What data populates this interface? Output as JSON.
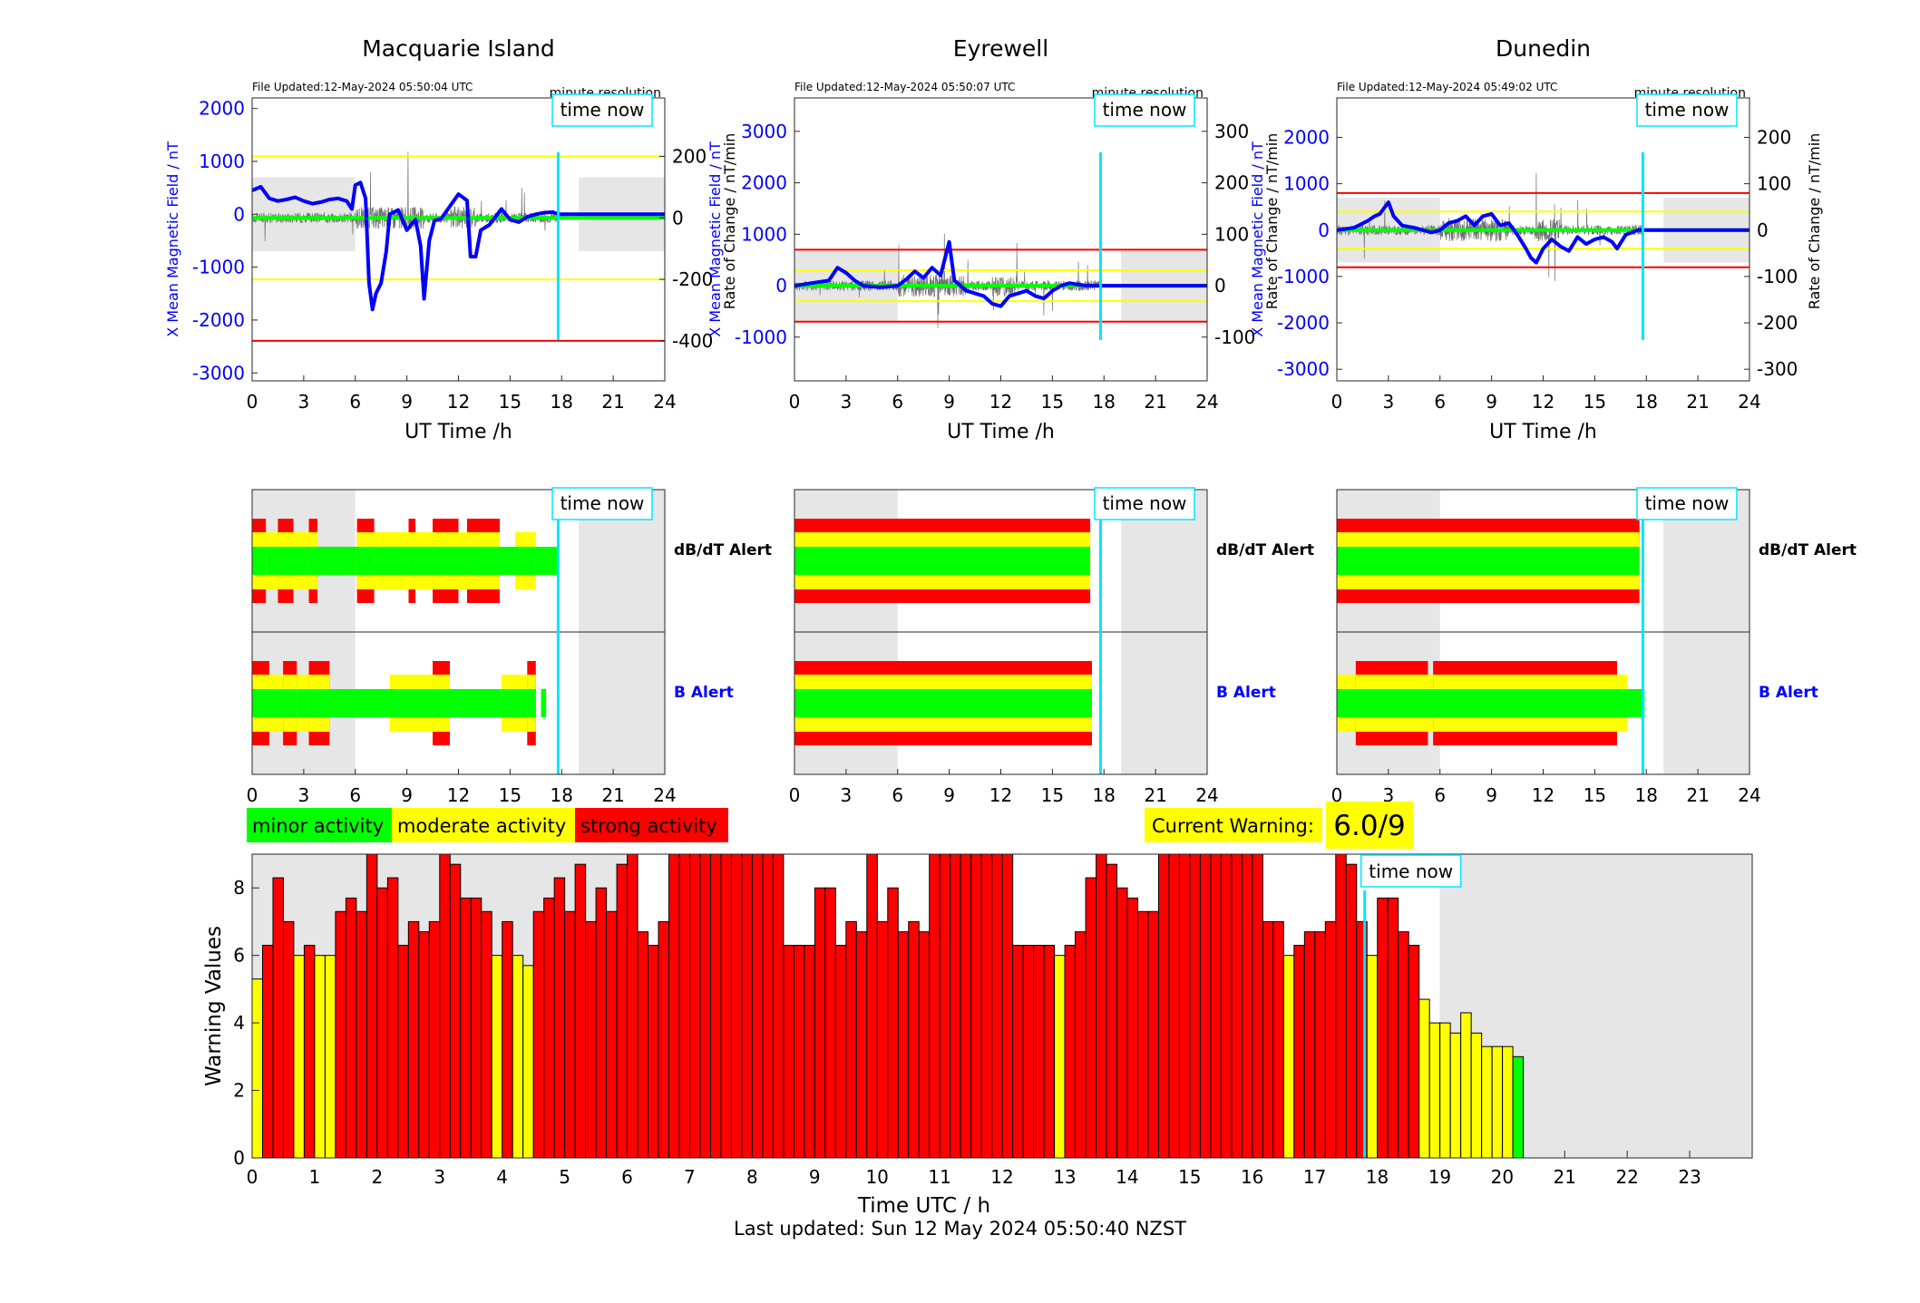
{
  "footer": {
    "last_updated": "Last updated: Sun 12 May 2024 05:50:40 NZST"
  },
  "colors": {
    "minor": "#00ff00",
    "moderate": "#ffff00",
    "strong": "#ff0000",
    "now": "#00e5ff",
    "night": "#e6e6e6",
    "field": "#0000ff"
  },
  "time_now_label": "time now",
  "legend": {
    "minor": "minor activity",
    "moderate": "moderate activity",
    "strong": "strong activity"
  },
  "current_warning": {
    "label": "Current Warning:",
    "value": "6.0/9"
  },
  "alert_labels": {
    "dbdt": "dB/dT Alert",
    "b": "B Alert"
  },
  "now_hour": 17.8,
  "stations": [
    {
      "name": "Macquarie Island",
      "file_updated": "File Updated:12-May-2024 05:50:04 UTC",
      "resolution": "minute resolution",
      "ylabel_left": "X Mean Magnetic Field / nT",
      "ylabel_right": "Rate of Change / nT/min",
      "yticks_left": [
        "2000",
        "1000",
        "0",
        "-1000",
        "-2000",
        "-3000"
      ],
      "yticks_right": [
        "200",
        "0",
        "-200",
        "-400"
      ],
      "ylim_left": [
        -3150,
        2200
      ],
      "ylim_right": [
        -530,
        390
      ],
      "night": [
        [
          0,
          6
        ],
        [
          19,
          24
        ]
      ],
      "band_lines": [
        400,
        -400,
        200,
        -200
      ],
      "field_series": [
        [
          0,
          450
        ],
        [
          0.5,
          520
        ],
        [
          1,
          300
        ],
        [
          1.5,
          250
        ],
        [
          2,
          280
        ],
        [
          2.5,
          320
        ],
        [
          3,
          250
        ],
        [
          3.5,
          200
        ],
        [
          4,
          230
        ],
        [
          4.5,
          280
        ],
        [
          5,
          300
        ],
        [
          5.5,
          250
        ],
        [
          5.8,
          100
        ],
        [
          6,
          550
        ],
        [
          6.3,
          600
        ],
        [
          6.6,
          300
        ],
        [
          6.8,
          -1300
        ],
        [
          7,
          -1800
        ],
        [
          7.2,
          -1500
        ],
        [
          7.5,
          -1300
        ],
        [
          7.8,
          -700
        ],
        [
          8,
          0
        ],
        [
          8.5,
          80
        ],
        [
          9,
          -300
        ],
        [
          9.5,
          -100
        ],
        [
          9.8,
          -600
        ],
        [
          10,
          -1600
        ],
        [
          10.3,
          -500
        ],
        [
          10.6,
          -120
        ],
        [
          11,
          -80
        ],
        [
          11.5,
          150
        ],
        [
          12,
          380
        ],
        [
          12.5,
          260
        ],
        [
          12.7,
          -800
        ],
        [
          13,
          -800
        ],
        [
          13.3,
          -300
        ],
        [
          13.8,
          -200
        ],
        [
          14.5,
          100
        ],
        [
          15,
          -100
        ],
        [
          15.5,
          -150
        ],
        [
          16,
          -50
        ],
        [
          16.5,
          0
        ],
        [
          17,
          30
        ],
        [
          17.5,
          40
        ],
        [
          17.8,
          0
        ],
        [
          24,
          0
        ]
      ],
      "dbdt_bands": [
        [
          0,
          0.8,
          "strong"
        ],
        [
          0.8,
          1.5,
          "moderate"
        ],
        [
          1.5,
          2.4,
          "strong"
        ],
        [
          2.4,
          3.3,
          "moderate"
        ],
        [
          3.3,
          3.8,
          "strong"
        ],
        [
          3.8,
          6.1,
          "minor"
        ],
        [
          6.1,
          7.1,
          "strong"
        ],
        [
          7.1,
          9.1,
          "moderate"
        ],
        [
          9.1,
          9.5,
          "strong"
        ],
        [
          9.5,
          10.5,
          "moderate"
        ],
        [
          10.5,
          12,
          "strong"
        ],
        [
          12,
          12.5,
          "moderate"
        ],
        [
          12.5,
          14.4,
          "strong"
        ],
        [
          14.4,
          15.3,
          "minor"
        ],
        [
          15.3,
          16.5,
          "moderate"
        ],
        [
          16.5,
          17.8,
          "minor"
        ]
      ],
      "b_bands": [
        [
          0,
          1,
          "strong"
        ],
        [
          1,
          1.8,
          "moderate"
        ],
        [
          1.8,
          2.6,
          "strong"
        ],
        [
          2.6,
          3.3,
          "moderate"
        ],
        [
          3.3,
          4.5,
          "strong"
        ],
        [
          4.5,
          8,
          "minor"
        ],
        [
          8,
          10.5,
          "moderate"
        ],
        [
          10.5,
          11.5,
          "strong"
        ],
        [
          11.5,
          14.5,
          "minor"
        ],
        [
          14.5,
          16,
          "moderate"
        ],
        [
          16,
          16.5,
          "strong"
        ],
        [
          16.8,
          17.1,
          "minor"
        ]
      ]
    },
    {
      "name": "Eyrewell",
      "file_updated": "File Updated:12-May-2024 05:50:07 UTC",
      "resolution": "minute resolution",
      "ylabel_left": "X Mean Magnetic Field / nT",
      "ylabel_right": "Rate of Change / nT/min",
      "yticks_left": [
        "3000",
        "2000",
        "1000",
        "0",
        "-1000"
      ],
      "yticks_right": [
        "300",
        "200",
        "100",
        "0",
        "-100"
      ],
      "ylim_left": [
        -1850,
        3650
      ],
      "ylim_right": [
        -185,
        365
      ],
      "night": [
        [
          0,
          6
        ],
        [
          19,
          24
        ]
      ],
      "band_lines": [
        70,
        -70,
        30,
        -30
      ],
      "field_series": [
        [
          0,
          0
        ],
        [
          1,
          50
        ],
        [
          2,
          100
        ],
        [
          2.5,
          350
        ],
        [
          3,
          250
        ],
        [
          3.5,
          100
        ],
        [
          4,
          0
        ],
        [
          5,
          -30
        ],
        [
          6,
          0
        ],
        [
          6.5,
          120
        ],
        [
          7,
          280
        ],
        [
          7.5,
          150
        ],
        [
          8,
          350
        ],
        [
          8.5,
          200
        ],
        [
          9,
          850
        ],
        [
          9.3,
          100
        ],
        [
          10,
          -100
        ],
        [
          11,
          -200
        ],
        [
          11.5,
          -350
        ],
        [
          12,
          -400
        ],
        [
          12.5,
          -200
        ],
        [
          13,
          -150
        ],
        [
          13.5,
          -100
        ],
        [
          14,
          -200
        ],
        [
          14.5,
          -250
        ],
        [
          15,
          -100
        ],
        [
          15.5,
          0
        ],
        [
          16,
          50
        ],
        [
          16.5,
          20
        ],
        [
          17,
          0
        ],
        [
          24,
          0
        ]
      ],
      "dbdt_bands": [
        [
          0,
          17.2,
          "strong"
        ]
      ],
      "b_bands": [
        [
          0,
          17.3,
          "strong"
        ]
      ]
    },
    {
      "name": "Dunedin",
      "file_updated": "File Updated:12-May-2024 05:49:02 UTC",
      "resolution": "minute resolution",
      "ylabel_left": "X Mean Magnetic Field / nT",
      "ylabel_right": "Rate of Change / nT/min",
      "yticks_left": [
        "2000",
        "1000",
        "0",
        "-1000",
        "-2000",
        "-3000"
      ],
      "yticks_right": [
        "200",
        "100",
        "0",
        "-100",
        "-200",
        "-300"
      ],
      "ylim_left": [
        -3250,
        2850
      ],
      "ylim_right": [
        -325,
        285
      ],
      "night": [
        [
          0,
          6
        ],
        [
          19,
          24
        ]
      ],
      "band_lines": [
        80,
        -80,
        40,
        -40
      ],
      "field_series": [
        [
          0,
          0
        ],
        [
          1,
          50
        ],
        [
          1.8,
          200
        ],
        [
          2.2,
          300
        ],
        [
          2.5,
          350
        ],
        [
          3,
          600
        ],
        [
          3.3,
          300
        ],
        [
          3.8,
          100
        ],
        [
          4.5,
          50
        ],
        [
          5,
          0
        ],
        [
          5.5,
          -50
        ],
        [
          6,
          0
        ],
        [
          6.5,
          150
        ],
        [
          7,
          200
        ],
        [
          7.5,
          300
        ],
        [
          8,
          100
        ],
        [
          8.5,
          300
        ],
        [
          9,
          350
        ],
        [
          9.5,
          100
        ],
        [
          10,
          150
        ],
        [
          10.5,
          -100
        ],
        [
          11,
          -400
        ],
        [
          11.3,
          -600
        ],
        [
          11.6,
          -700
        ],
        [
          12,
          -400
        ],
        [
          12.5,
          -200
        ],
        [
          13,
          -350
        ],
        [
          13.5,
          -450
        ],
        [
          14,
          -150
        ],
        [
          14.5,
          -300
        ],
        [
          15,
          -200
        ],
        [
          15.5,
          -150
        ],
        [
          16,
          -250
        ],
        [
          16.3,
          -400
        ],
        [
          16.8,
          -100
        ],
        [
          17.5,
          0
        ],
        [
          24,
          0
        ]
      ],
      "dbdt_bands": [
        [
          0,
          17.6,
          "strong"
        ]
      ],
      "b_bands": [
        [
          0,
          1.1,
          "moderate"
        ],
        [
          1.1,
          5.3,
          "strong"
        ],
        [
          5.3,
          5.6,
          "moderate"
        ],
        [
          5.6,
          16.3,
          "strong"
        ],
        [
          16.3,
          16.9,
          "moderate"
        ],
        [
          16.9,
          17.9,
          "minor"
        ]
      ]
    }
  ],
  "chart_data": {
    "type": "bar",
    "xlabel": "Time UTC / h",
    "ylabel": "Warning Values",
    "ylim": [
      0,
      9
    ],
    "xlim": [
      0,
      24
    ],
    "yticks": [
      0,
      2,
      4,
      6,
      8
    ],
    "xticks": [
      0,
      1,
      2,
      3,
      4,
      5,
      6,
      7,
      8,
      9,
      10,
      11,
      12,
      13,
      14,
      15,
      16,
      17,
      18,
      19,
      20,
      21,
      22,
      23
    ],
    "bar_width_h": 0.1667,
    "values": [
      5.3,
      6.3,
      8.3,
      7.0,
      6.0,
      6.3,
      6.0,
      6.0,
      7.3,
      7.7,
      7.3,
      9.0,
      8.0,
      8.3,
      6.3,
      7.0,
      6.7,
      7.0,
      9.0,
      8.7,
      7.7,
      7.7,
      7.3,
      6.0,
      7.0,
      6.0,
      5.7,
      7.3,
      7.7,
      8.3,
      7.3,
      8.7,
      7.0,
      8.0,
      7.3,
      8.7,
      9.0,
      6.7,
      6.3,
      7.0,
      9.0,
      9.0,
      9.0,
      9.0,
      9.0,
      9.0,
      9.0,
      9.0,
      9.0,
      9.0,
      9.0,
      6.3,
      6.3,
      6.3,
      8.0,
      8.0,
      6.3,
      7.0,
      6.7,
      9.0,
      7.0,
      8.0,
      6.7,
      7.0,
      6.7,
      9.0,
      9.0,
      9.0,
      9.0,
      9.0,
      9.0,
      9.0,
      9.0,
      6.3,
      6.3,
      6.3,
      6.3,
      6.0,
      6.3,
      6.7,
      8.3,
      9.0,
      8.7,
      8.0,
      7.7,
      7.3,
      7.3,
      9.0,
      9.0,
      9.0,
      9.0,
      9.0,
      9.0,
      9.0,
      9.0,
      9.0,
      9.0,
      7.0,
      7.0,
      6.0,
      6.3,
      6.7,
      6.7,
      7.0,
      9.0,
      8.7,
      7.0,
      6.0,
      7.7,
      7.7,
      6.7,
      6.3,
      4.7,
      4.0,
      4.0,
      3.7,
      4.3,
      3.7,
      3.3,
      3.3,
      3.3,
      3.0
    ],
    "levels": [
      "moderate",
      "strong",
      "strong",
      "strong",
      "moderate",
      "strong",
      "moderate",
      "moderate",
      "strong",
      "strong",
      "strong",
      "strong",
      "strong",
      "strong",
      "strong",
      "strong",
      "strong",
      "strong",
      "strong",
      "strong",
      "strong",
      "strong",
      "strong",
      "moderate",
      "strong",
      "moderate",
      "moderate",
      "strong",
      "strong",
      "strong",
      "strong",
      "strong",
      "strong",
      "strong",
      "strong",
      "strong",
      "strong",
      "strong",
      "strong",
      "strong",
      "strong",
      "strong",
      "strong",
      "strong",
      "strong",
      "strong",
      "strong",
      "strong",
      "strong",
      "strong",
      "strong",
      "strong",
      "strong",
      "strong",
      "strong",
      "strong",
      "strong",
      "strong",
      "strong",
      "strong",
      "strong",
      "strong",
      "strong",
      "strong",
      "strong",
      "strong",
      "strong",
      "strong",
      "strong",
      "strong",
      "strong",
      "strong",
      "strong",
      "strong",
      "strong",
      "strong",
      "strong",
      "moderate",
      "strong",
      "strong",
      "strong",
      "strong",
      "strong",
      "strong",
      "strong",
      "strong",
      "strong",
      "strong",
      "strong",
      "strong",
      "strong",
      "strong",
      "strong",
      "strong",
      "strong",
      "strong",
      "strong",
      "strong",
      "strong",
      "moderate",
      "strong",
      "strong",
      "strong",
      "strong",
      "strong",
      "strong",
      "strong",
      "moderate",
      "strong",
      "strong",
      "strong",
      "strong",
      "moderate",
      "moderate",
      "moderate",
      "moderate",
      "moderate",
      "moderate",
      "moderate",
      "moderate",
      "moderate",
      "minor"
    ],
    "night": [
      [
        0,
        6
      ],
      [
        19,
        24
      ]
    ]
  }
}
